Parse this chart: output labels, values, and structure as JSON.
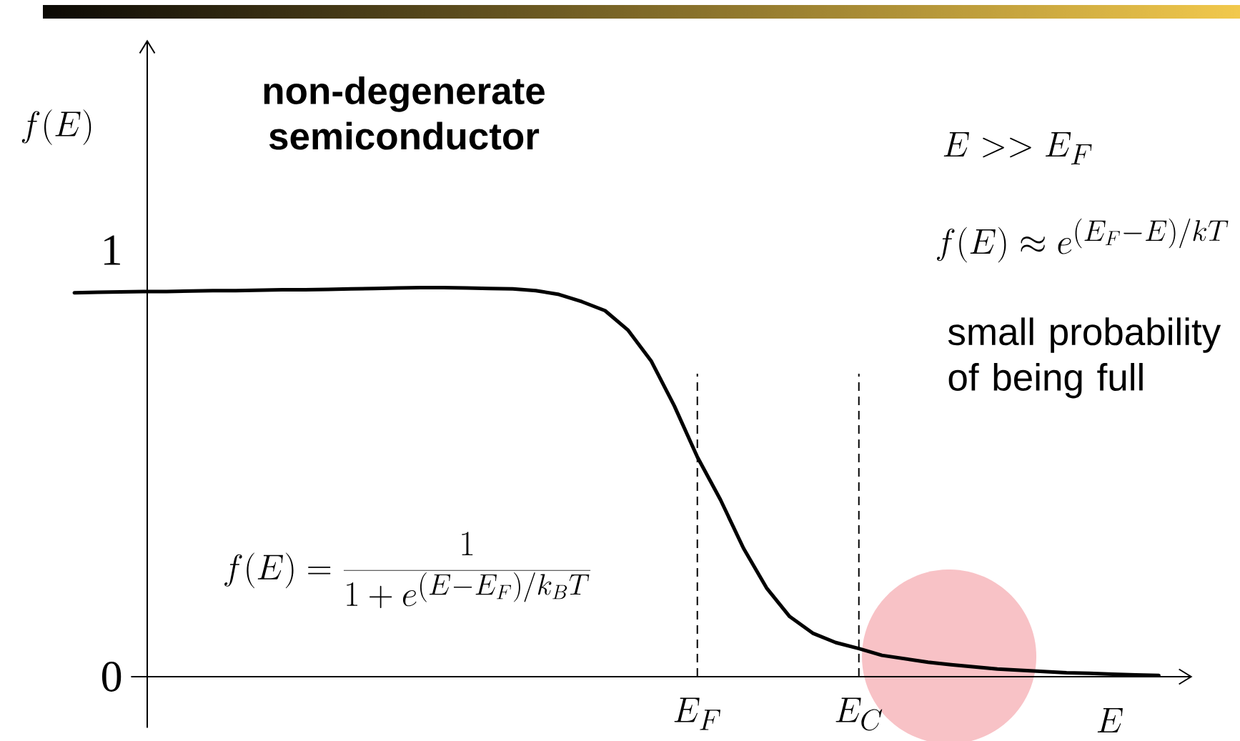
{
  "chart_data": {
    "type": "line",
    "title": "non-degenerate semiconductor",
    "xlabel": "E",
    "ylabel": "f(E)",
    "categories": [
      null,
      null,
      null,
      null,
      null,
      null,
      null,
      null,
      null,
      null,
      null,
      null,
      null,
      null,
      null,
      null,
      null,
      null,
      null,
      null,
      null,
      null,
      null,
      null,
      null,
      null,
      null,
      "E_F",
      null,
      null,
      null,
      null,
      null,
      null,
      "E_C",
      null,
      null,
      null,
      null,
      null,
      null,
      null,
      null,
      null,
      null,
      null,
      null,
      null
    ],
    "values": [
      0.9,
      0.901,
      0.902,
      0.903,
      0.903,
      0.904,
      0.905,
      0.905,
      0.906,
      0.907,
      0.907,
      0.908,
      0.909,
      0.91,
      0.911,
      0.912,
      0.912,
      0.911,
      0.91,
      0.909,
      0.905,
      0.896,
      0.879,
      0.858,
      0.812,
      0.74,
      0.635,
      0.515,
      0.415,
      0.301,
      0.208,
      0.141,
      0.102,
      0.08,
      0.066,
      0.05,
      0.042,
      0.034,
      0.028,
      0.023,
      0.018,
      0.015,
      0.012,
      0.009,
      0.008,
      0.006,
      0.004,
      0.003
    ],
    "color": "#000000",
    "ylim": [
      -0.12,
      1.49
    ],
    "yticks": [
      0,
      1
    ],
    "ref_lines": [
      {
        "axis": "x",
        "value": "E_F",
        "color": "#000000",
        "line_style": "dashed"
      },
      {
        "axis": "x",
        "value": "E_C",
        "color": "#000000",
        "line_style": "dashed"
      }
    ],
    "annotations": [
      "f(E)=\\frac{1}{1+e^{(E-E_F)/k_BT}}",
      "E>>E_F",
      "f(E)\\approx e^{(E_F-E)/kT}",
      "small probability of being full"
    ]
  }
}
